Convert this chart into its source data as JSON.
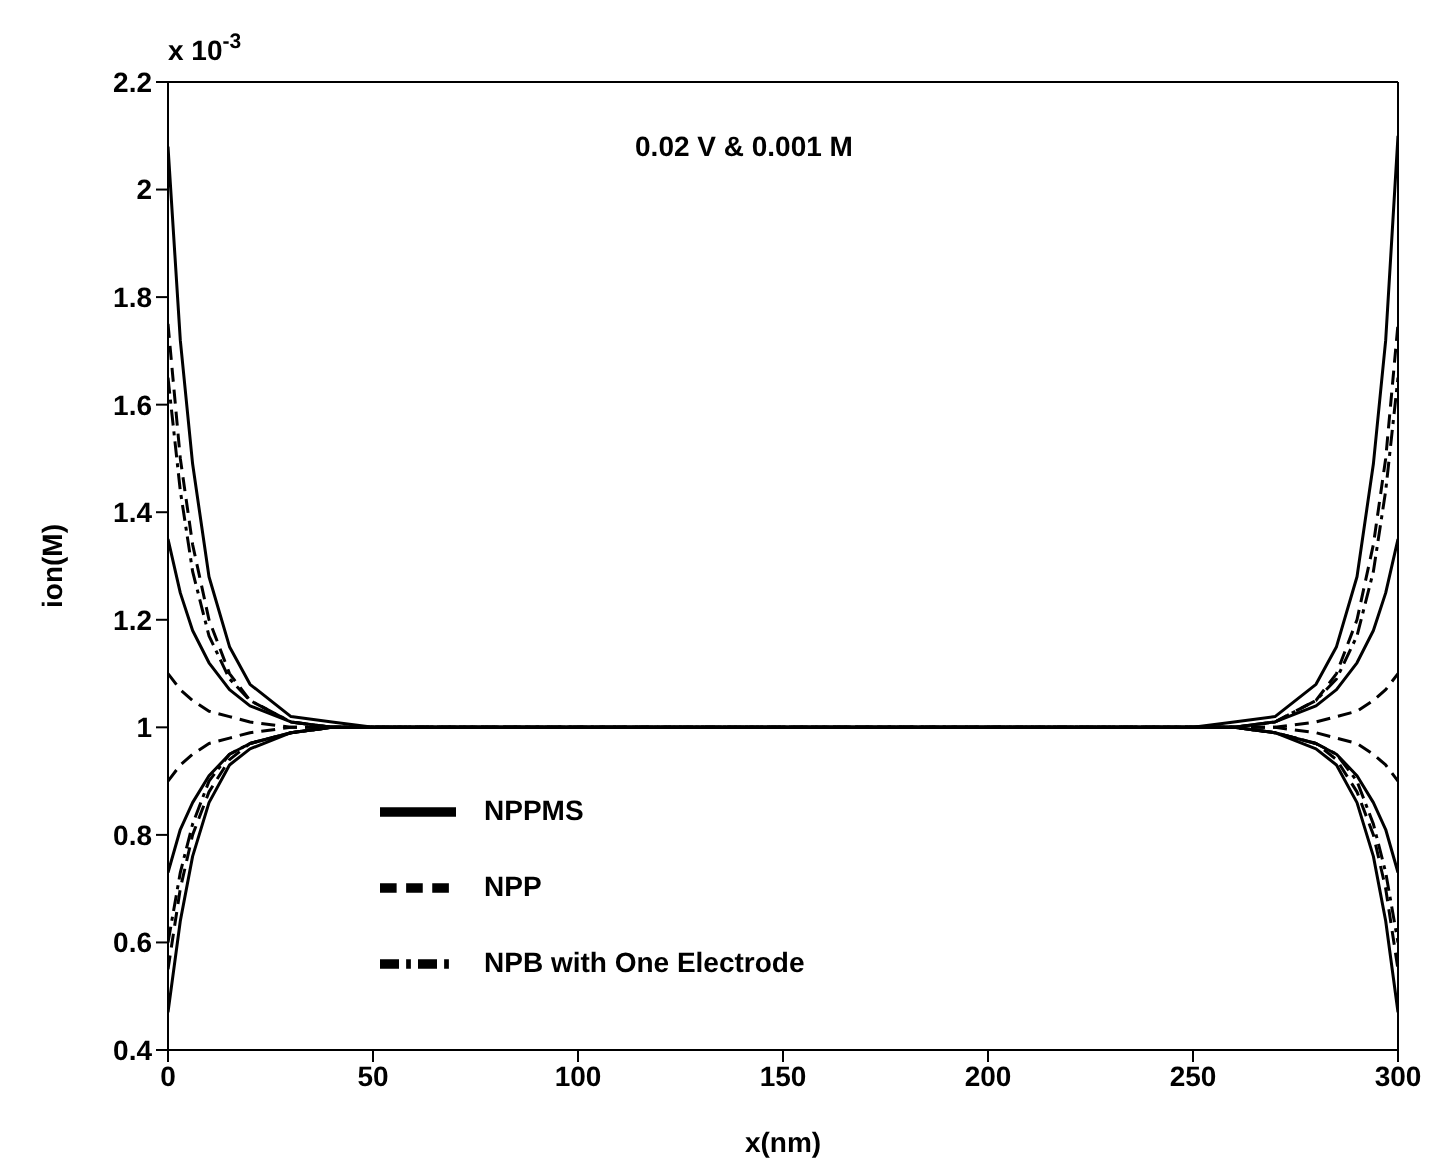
{
  "chart_data": {
    "type": "line",
    "xlabel": "x(nm)",
    "ylabel": "ion(M)",
    "annotations": [
      "0.02 V & 0.001 M",
      "x 10$^{-3}$"
    ],
    "x": [
      0,
      3,
      6,
      10,
      15,
      20,
      30,
      40,
      50,
      150,
      250,
      260,
      270,
      280,
      285,
      290,
      294,
      297,
      300
    ],
    "xlim": [
      0,
      300
    ],
    "xticks": [
      0,
      50,
      100,
      150,
      200,
      250,
      300
    ],
    "ylim": [
      0.4,
      2.2
    ],
    "yticks": [
      0.4,
      0.6,
      0.8,
      1,
      1.2,
      1.4,
      1.6,
      1.8,
      2,
      2.2
    ],
    "legend": "bottom left",
    "grid": false,
    "marker": "none",
    "series": [
      {
        "name": "NPPMS",
        "color": "#000000",
        "line_style": "solid",
        "values": [
          2.08,
          1.72,
          1.49,
          1.28,
          1.15,
          1.08,
          1.02,
          1.01,
          1.0,
          1.0,
          1.0,
          1.0,
          0.99,
          0.96,
          0.93,
          0.86,
          0.76,
          0.64,
          0.47
        ]
      },
      {
        "name": "NPP",
        "color": "#000000",
        "line_style": "dashed",
        "values": [
          1.75,
          1.5,
          1.34,
          1.2,
          1.1,
          1.05,
          1.01,
          1.0,
          1.0,
          1.0,
          1.0,
          1.0,
          0.99,
          0.97,
          0.94,
          0.88,
          0.8,
          0.7,
          0.55
        ]
      },
      {
        "name": "NPB with One Electrode",
        "color": "#000000",
        "line_style": "dashdot",
        "values": [
          1.65,
          1.44,
          1.29,
          1.17,
          1.09,
          1.05,
          1.01,
          1.0,
          1.0,
          1.0,
          1.0,
          1.0,
          0.99,
          0.97,
          0.95,
          0.9,
          0.82,
          0.73,
          0.6
        ]
      },
      {
        "color": "#000000",
        "line_style": "solid",
        "values": [
          0.47,
          0.64,
          0.76,
          0.86,
          0.93,
          0.96,
          0.99,
          1.0,
          1.0,
          1.0,
          1.0,
          1.01,
          1.02,
          1.08,
          1.15,
          1.28,
          1.49,
          1.72,
          2.1
        ]
      },
      {
        "color": "#000000",
        "line_style": "dashed",
        "values": [
          0.55,
          0.7,
          0.8,
          0.88,
          0.94,
          0.97,
          0.99,
          1.0,
          1.0,
          1.0,
          1.0,
          1.0,
          1.01,
          1.05,
          1.1,
          1.2,
          1.34,
          1.5,
          1.75
        ]
      },
      {
        "color": "#000000",
        "line_style": "dashdot",
        "values": [
          0.6,
          0.73,
          0.82,
          0.9,
          0.95,
          0.97,
          0.99,
          1.0,
          1.0,
          1.0,
          1.0,
          1.0,
          1.01,
          1.05,
          1.09,
          1.17,
          1.29,
          1.44,
          1.65
        ]
      },
      {
        "color": "#000000",
        "line_style": "solid",
        "values": [
          1.35,
          1.25,
          1.18,
          1.12,
          1.07,
          1.04,
          1.01,
          1.0,
          1.0,
          1.0,
          1.0,
          1.0,
          0.99,
          0.97,
          0.95,
          0.91,
          0.86,
          0.81,
          0.73
        ]
      },
      {
        "color": "#000000",
        "line_style": "solid",
        "values": [
          0.73,
          0.81,
          0.86,
          0.91,
          0.95,
          0.97,
          0.99,
          1.0,
          1.0,
          1.0,
          1.0,
          1.0,
          1.01,
          1.04,
          1.07,
          1.12,
          1.18,
          1.25,
          1.35
        ]
      },
      {
        "color": "#000000",
        "line_style": "dashed",
        "values": [
          1.1,
          1.07,
          1.05,
          1.03,
          1.02,
          1.01,
          1.0,
          1.0,
          1.0,
          1.0,
          1.0,
          1.0,
          1.0,
          0.99,
          0.98,
          0.97,
          0.95,
          0.93,
          0.9
        ]
      },
      {
        "color": "#000000",
        "line_style": "dashed",
        "values": [
          0.9,
          0.93,
          0.95,
          0.97,
          0.98,
          0.99,
          1.0,
          1.0,
          1.0,
          1.0,
          1.0,
          1.0,
          1.0,
          1.01,
          1.02,
          1.03,
          1.05,
          1.07,
          1.1
        ]
      }
    ]
  }
}
